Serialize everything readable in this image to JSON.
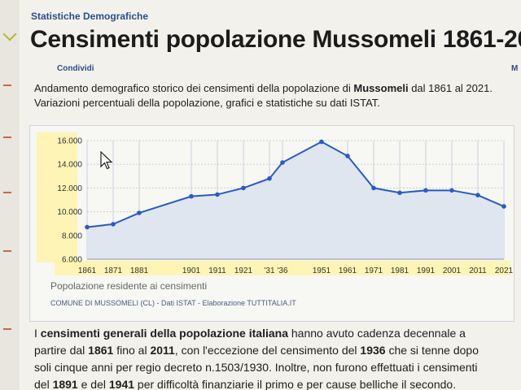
{
  "page": {
    "breadcrumb": "Statistiche Demografiche",
    "title": "Censimenti popolazione Mussomeli 1861-20",
    "share_label": "Condividi",
    "share_right": "M",
    "intro_part1": "Andamento demografico storico dei censimenti della popolazione di ",
    "intro_bold": "Mussomeli",
    "intro_part2": " dal 1861 al 2021. Variazioni percentuali della popolazione, grafici e statistiche su dati ISTAT."
  },
  "chart_data": {
    "type": "area",
    "x_labels": [
      "1861",
      "1871",
      "1881",
      "1901",
      "1911",
      "1921",
      "'31",
      "'36",
      "1951",
      "1961",
      "1971",
      "1981",
      "1991",
      "2001",
      "2011",
      "2021"
    ],
    "x": [
      1861,
      1871,
      1881,
      1901,
      1911,
      1921,
      1931,
      1936,
      1951,
      1961,
      1971,
      1981,
      1991,
      2001,
      2011,
      2021
    ],
    "values": [
      8700,
      8950,
      9900,
      11300,
      11450,
      12000,
      12800,
      14150,
      15900,
      14700,
      12000,
      11600,
      11800,
      11800,
      11400,
      10450
    ],
    "y_ticks": [
      "6.000",
      "8.000",
      "10.000",
      "12.000",
      "14.000",
      "16.000"
    ],
    "ylim": [
      6000,
      16000
    ],
    "xlabel": "",
    "ylabel": "",
    "grid": true,
    "line_color": "#2a5bc4",
    "fill_color": "#dfe6f0",
    "highlight_color": "#fff3a0"
  },
  "chart_caption": "Popolazione residente ai censimenti",
  "chart_source": "COMUNE DI MUSSOMELI (CL) - Dati ISTAT - Elaborazione TUTTITALIA.IT",
  "body": {
    "line1": [
      {
        "t": "I ",
        "b": false
      },
      {
        "t": "censimenti generali della popolazione italiana",
        "b": true
      },
      {
        "t": " hanno avuto cadenza decennale a",
        "b": false
      }
    ],
    "line2": [
      {
        "t": "partire dal ",
        "b": false
      },
      {
        "t": "1861",
        "b": true
      },
      {
        "t": " fino al ",
        "b": false
      },
      {
        "t": "2011",
        "b": true
      },
      {
        "t": ", con l'eccezione del censimento del ",
        "b": false
      },
      {
        "t": "1936",
        "b": true
      },
      {
        "t": " che si tenne dopo",
        "b": false
      }
    ],
    "line3": [
      {
        "t": "soli cinque anni per regio decreto n.1503/1930. Inoltre, non furono effettuati i censimenti",
        "b": false
      }
    ],
    "line4": [
      {
        "t": "del ",
        "b": false
      },
      {
        "t": "1891",
        "b": true
      },
      {
        "t": " e del ",
        "b": false
      },
      {
        "t": "1941",
        "b": true
      },
      {
        "t": " per difficoltà finanziarie il primo e per cause belliche il secondo.",
        "b": false
      }
    ]
  }
}
